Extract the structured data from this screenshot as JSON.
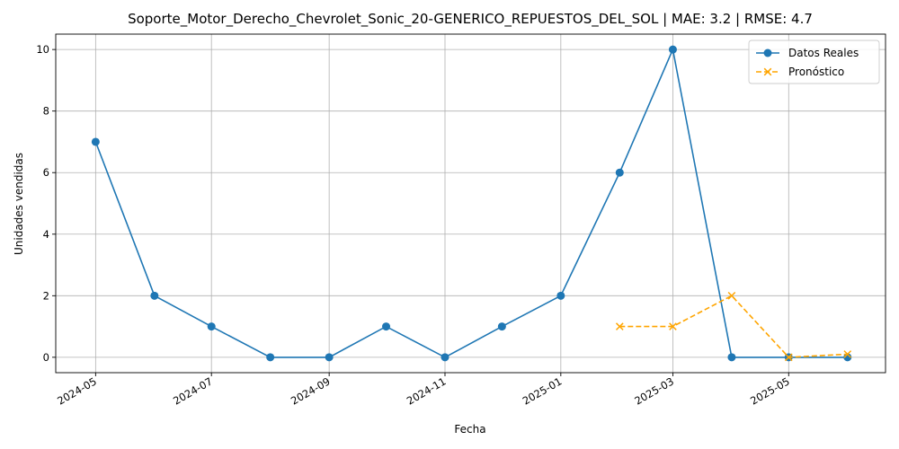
{
  "chart_data": {
    "type": "line",
    "title": "Soporte_Motor_Derecho_Chevrolet_Sonic_20-GENERICO_REPUESTOS_DEL_SOL | MAE: 3.2 | RMSE: 4.7",
    "xlabel": "Fecha",
    "ylabel": "Unidades vendidas",
    "xlim": [
      "2024-04-10",
      "2025-06-21"
    ],
    "ylim": [
      -0.5,
      10.5
    ],
    "x_ticks": [
      "2024-05-01",
      "2024-07-01",
      "2024-09-01",
      "2024-11-01",
      "2025-01-01",
      "2025-03-01",
      "2025-05-01"
    ],
    "x_tick_labels": [
      "2024-05",
      "2024-07",
      "2024-09",
      "2024-11",
      "2025-01",
      "2025-03",
      "2025-05"
    ],
    "y_ticks": [
      0,
      2,
      4,
      6,
      8,
      10
    ],
    "y_tick_labels": [
      "0",
      "2",
      "4",
      "6",
      "8",
      "10"
    ],
    "grid": true,
    "legend_position": "top-right",
    "series": [
      {
        "name": "Datos Reales",
        "color": "#1f77b4",
        "line_style": "solid",
        "marker": "circle",
        "x": [
          "2024-05-01",
          "2024-06-01",
          "2024-07-01",
          "2024-08-01",
          "2024-09-01",
          "2024-10-01",
          "2024-11-01",
          "2024-12-01",
          "2025-01-01",
          "2025-02-01",
          "2025-03-01",
          "2025-04-01",
          "2025-05-01",
          "2025-06-01"
        ],
        "y": [
          7,
          2,
          1,
          0,
          0,
          1,
          0,
          1,
          2,
          6,
          10,
          0,
          0,
          0
        ]
      },
      {
        "name": "Pronóstico",
        "color": "#ffa500",
        "line_style": "dashed",
        "marker": "x",
        "x": [
          "2025-02-01",
          "2025-03-01",
          "2025-04-01",
          "2025-05-01",
          "2025-06-01"
        ],
        "y": [
          1,
          1,
          2,
          0,
          0.1
        ]
      }
    ]
  }
}
